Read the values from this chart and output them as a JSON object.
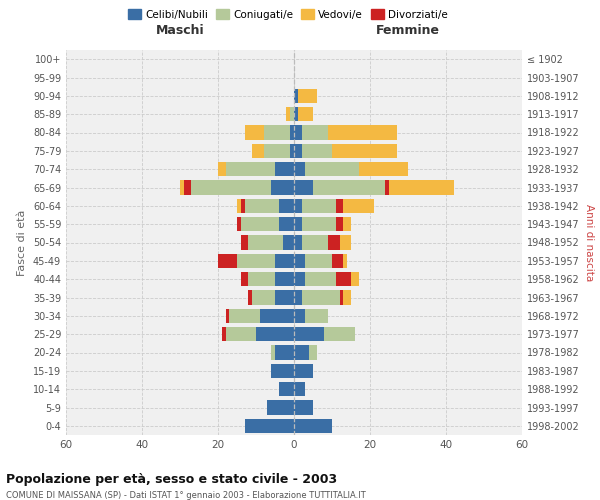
{
  "age_groups": [
    "0-4",
    "5-9",
    "10-14",
    "15-19",
    "20-24",
    "25-29",
    "30-34",
    "35-39",
    "40-44",
    "45-49",
    "50-54",
    "55-59",
    "60-64",
    "65-69",
    "70-74",
    "75-79",
    "80-84",
    "85-89",
    "90-94",
    "95-99",
    "100+"
  ],
  "birth_years": [
    "1998-2002",
    "1993-1997",
    "1988-1992",
    "1983-1987",
    "1978-1982",
    "1973-1977",
    "1968-1972",
    "1963-1967",
    "1958-1962",
    "1953-1957",
    "1948-1952",
    "1943-1947",
    "1938-1942",
    "1933-1937",
    "1928-1932",
    "1923-1927",
    "1918-1922",
    "1913-1917",
    "1908-1912",
    "1903-1907",
    "≤ 1902"
  ],
  "male": {
    "celibi": [
      13,
      7,
      4,
      6,
      5,
      10,
      9,
      5,
      5,
      5,
      3,
      4,
      4,
      6,
      5,
      1,
      1,
      0,
      0,
      0,
      0
    ],
    "coniugati": [
      0,
      0,
      0,
      0,
      1,
      8,
      8,
      6,
      7,
      10,
      9,
      10,
      9,
      21,
      13,
      7,
      7,
      1,
      0,
      0,
      0
    ],
    "vedovi": [
      0,
      0,
      0,
      0,
      0,
      0,
      0,
      0,
      0,
      0,
      0,
      0,
      1,
      1,
      2,
      3,
      5,
      1,
      0,
      0,
      0
    ],
    "divorziati": [
      0,
      0,
      0,
      0,
      0,
      1,
      1,
      1,
      2,
      5,
      2,
      1,
      1,
      2,
      0,
      0,
      0,
      0,
      0,
      0,
      0
    ]
  },
  "female": {
    "nubili": [
      10,
      5,
      3,
      5,
      4,
      8,
      3,
      2,
      3,
      3,
      2,
      2,
      2,
      5,
      3,
      2,
      2,
      1,
      1,
      0,
      0
    ],
    "coniugate": [
      0,
      0,
      0,
      0,
      2,
      8,
      6,
      10,
      8,
      7,
      7,
      9,
      9,
      19,
      14,
      8,
      7,
      0,
      0,
      0,
      0
    ],
    "vedove": [
      0,
      0,
      0,
      0,
      0,
      0,
      0,
      2,
      2,
      1,
      3,
      2,
      8,
      17,
      13,
      17,
      18,
      4,
      5,
      0,
      0
    ],
    "divorziate": [
      0,
      0,
      0,
      0,
      0,
      0,
      0,
      1,
      4,
      3,
      3,
      2,
      2,
      1,
      0,
      0,
      0,
      0,
      0,
      0,
      0
    ]
  },
  "colors": {
    "celibi": "#3a6ea5",
    "coniugati": "#b5c99a",
    "vedovi": "#f4b942",
    "divorziati": "#cc2222"
  },
  "title": "Popolazione per età, sesso e stato civile - 2003",
  "subtitle": "COMUNE DI MAISSANA (SP) - Dati ISTAT 1° gennaio 2003 - Elaborazione TUTTITALIA.IT",
  "xlabel_left": "Maschi",
  "xlabel_right": "Femmine",
  "ylabel_left": "Fasce di età",
  "ylabel_right": "Anni di nascita",
  "xlim": 60,
  "legend_labels": [
    "Celibi/Nubili",
    "Coniugati/e",
    "Vedovi/e",
    "Divorziati/e"
  ],
  "bg_color": "#ffffff",
  "plot_bg_color": "#f0f0f0"
}
